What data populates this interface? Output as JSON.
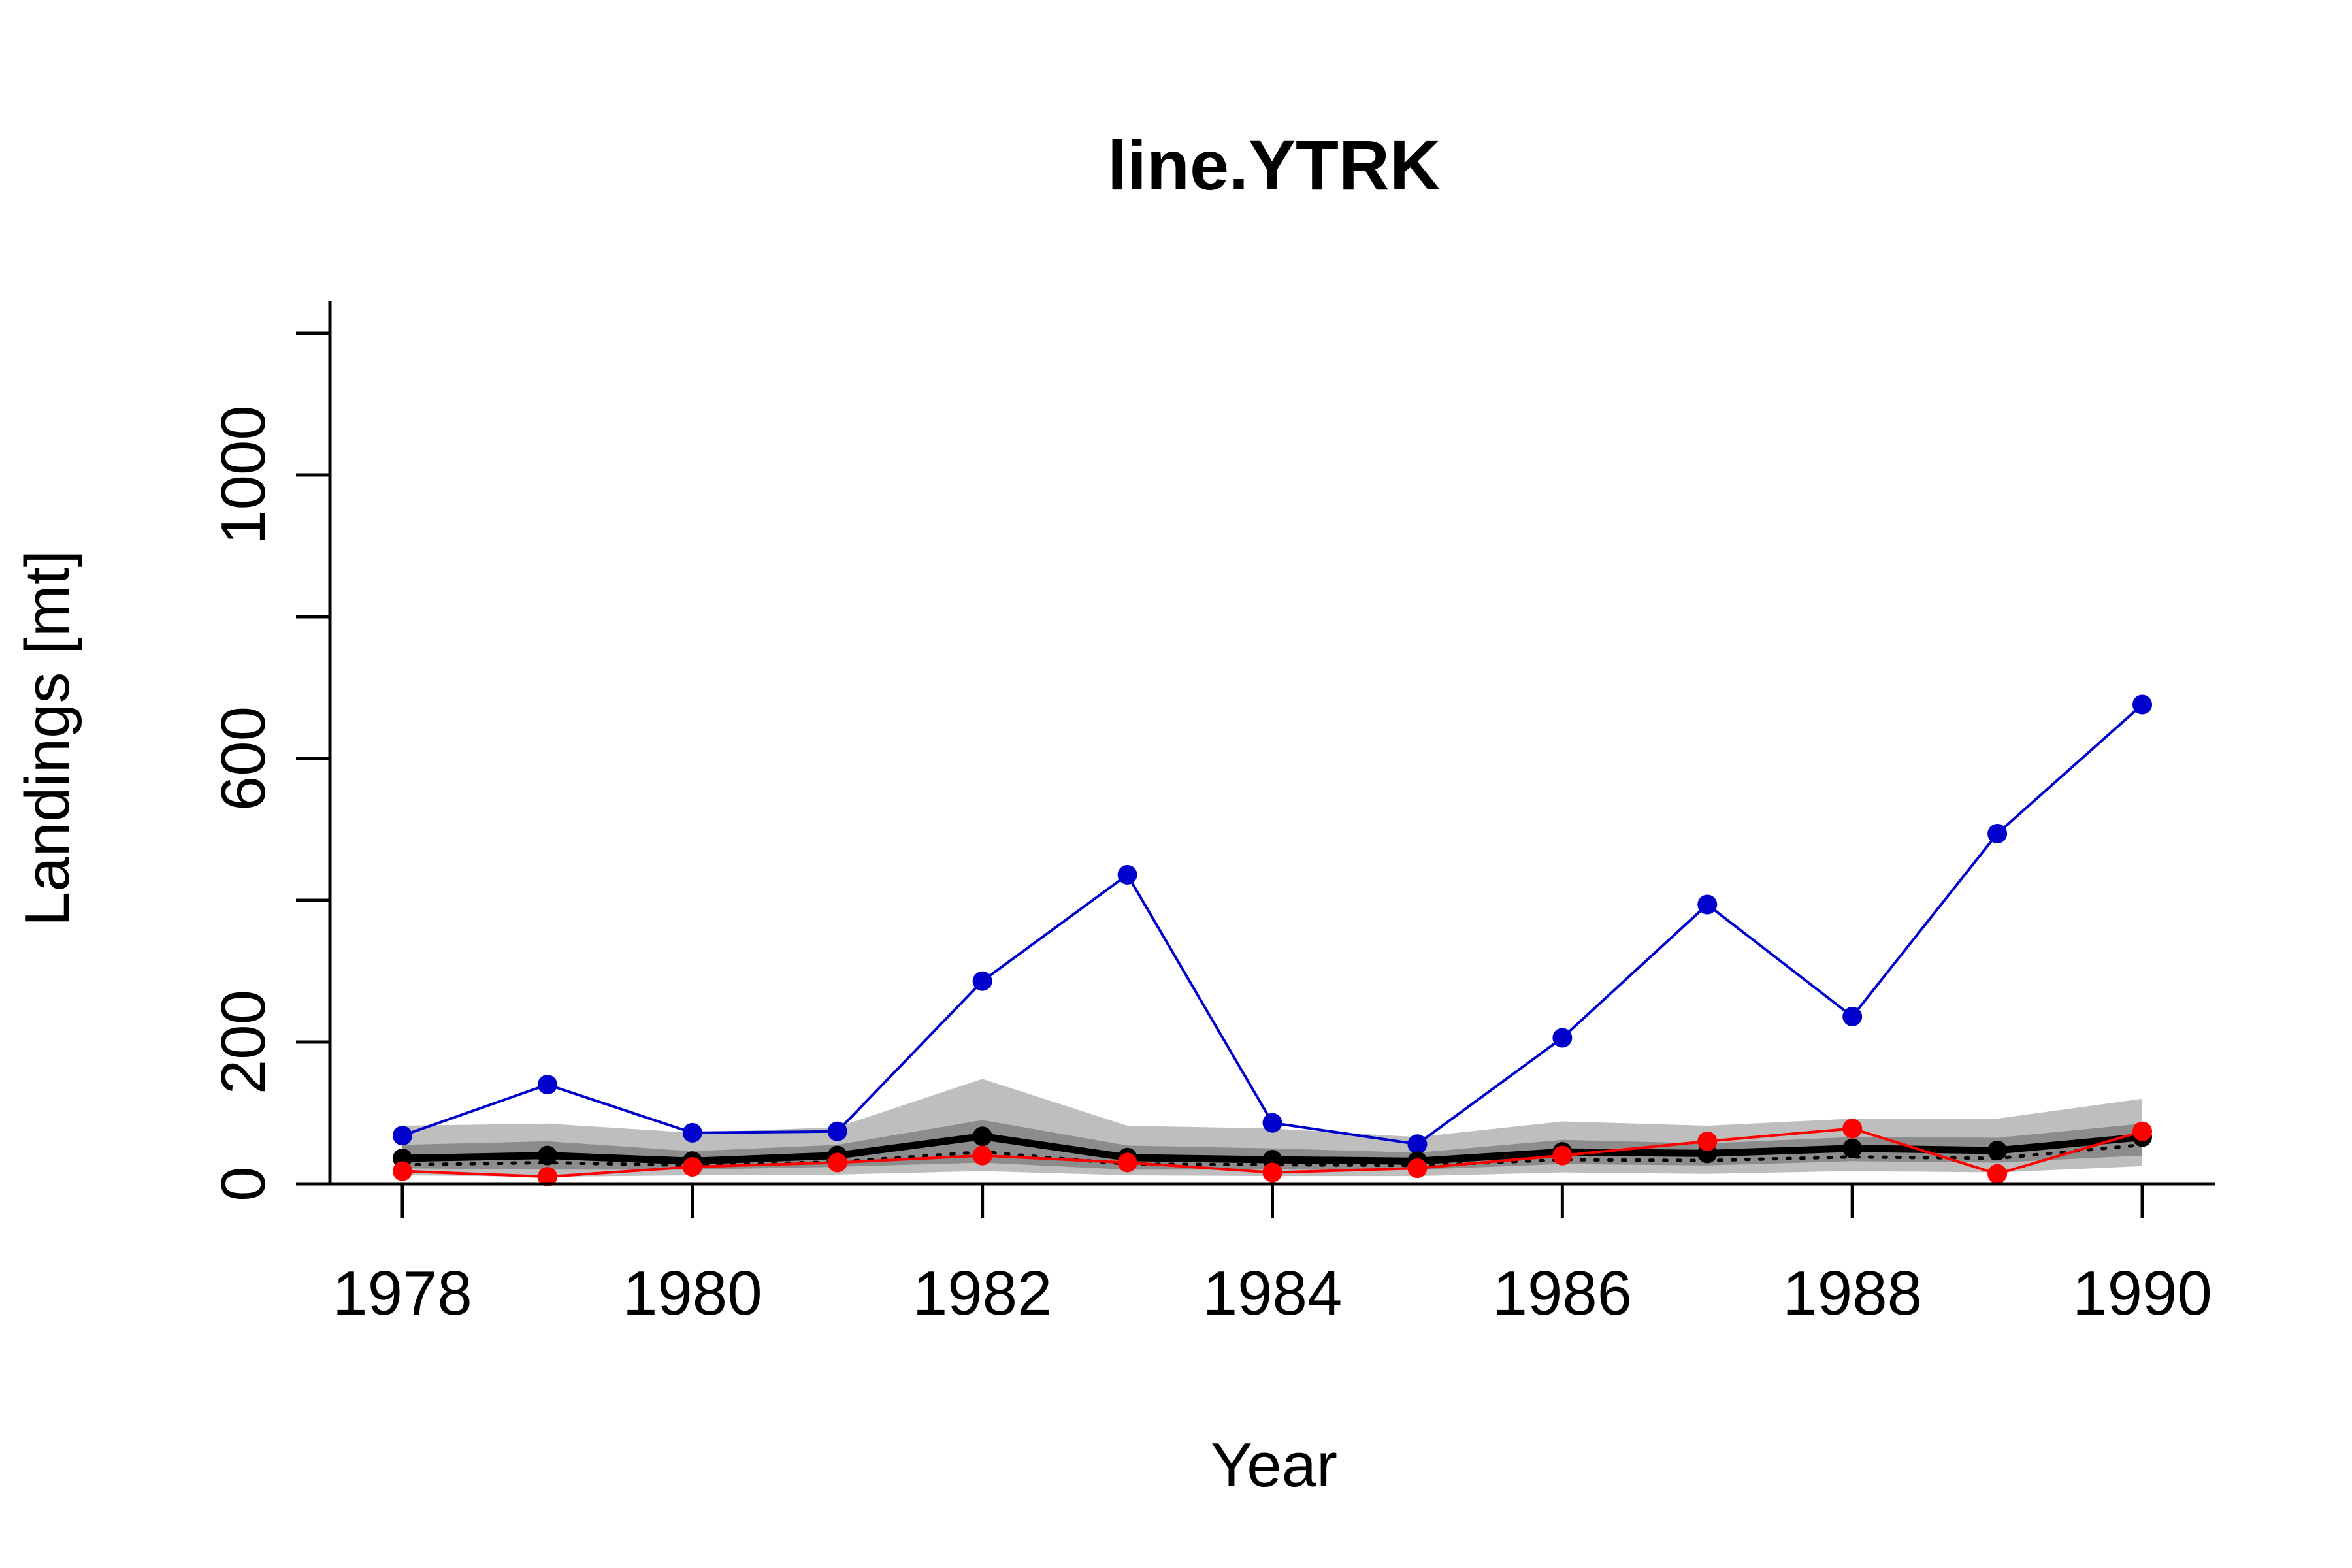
{
  "chart_data": {
    "type": "line",
    "title": "line.YTRK",
    "xlabel": "Year",
    "ylabel": "Landings [mt]",
    "xlim": [
      1977.5,
      1990.5
    ],
    "ylim": [
      0,
      1200
    ],
    "x_ticks": [
      1978,
      1980,
      1982,
      1984,
      1986,
      1988,
      1990
    ],
    "y_ticks": [
      0,
      200,
      400,
      600,
      800,
      1000,
      1200
    ],
    "y_tick_labels": [
      "0",
      "200",
      "",
      "600",
      "",
      "1000",
      ""
    ],
    "grid": false,
    "x": [
      1978,
      1979,
      1980,
      1981,
      1982,
      1983,
      1984,
      1985,
      1986,
      1987,
      1988,
      1989,
      1990
    ],
    "bands": [
      {
        "color": "#bebebe",
        "lower": [
          12,
          10,
          12,
          13,
          18,
          12,
          11,
          11,
          16,
          14,
          18,
          16,
          25
        ],
        "upper": [
          82,
          85,
          72,
          80,
          148,
          82,
          78,
          66,
          88,
          82,
          92,
          92,
          120
        ]
      },
      {
        "color": "#8c8c8c",
        "lower": [
          22,
          20,
          20,
          24,
          30,
          20,
          20,
          20,
          28,
          26,
          32,
          30,
          40
        ],
        "upper": [
          55,
          60,
          46,
          55,
          90,
          54,
          50,
          44,
          62,
          57,
          66,
          65,
          85
        ]
      }
    ],
    "series": [
      {
        "color": "#0000cd",
        "style": "line-points",
        "values": [
          68,
          140,
          72,
          74,
          286,
          436,
          86,
          56,
          206,
          394,
          236,
          494,
          676
        ]
      },
      {
        "color": "#000000",
        "style": "thick-line-points",
        "values": [
          36,
          40,
          32,
          40,
          67,
          37,
          34,
          32,
          45,
          43,
          50,
          47,
          66
        ]
      },
      {
        "color": "#000000",
        "style": "dotted-line",
        "values": [
          27,
          30,
          26,
          31,
          45,
          28,
          27,
          26,
          34,
          33,
          38,
          36,
          55
        ]
      },
      {
        "color": "#ff0000",
        "style": "line-points",
        "values": [
          18,
          10,
          24,
          30,
          40,
          30,
          16,
          22,
          40,
          60,
          78,
          14,
          74
        ]
      }
    ]
  }
}
